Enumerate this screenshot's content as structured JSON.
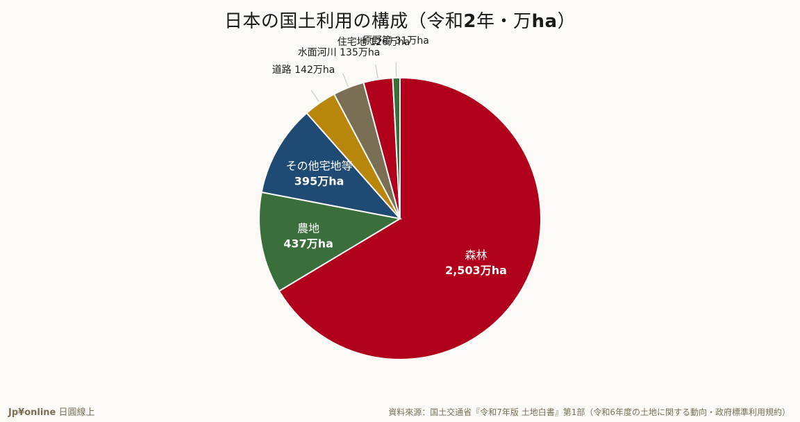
{
  "chart_data": {
    "type": "pie",
    "title": "日本の国土利用の構成（令和2年・万ha）",
    "title_parts": {
      "prefix": "日本の国土利用の構成（令和",
      "year": "2",
      "middle": "年・万",
      "unit": "ha",
      "suffix": "）"
    },
    "unit": "万ha",
    "slices": [
      {
        "name": "森林",
        "value": 2503,
        "display": "2,503万ha",
        "color": "#b1001c",
        "label_position": "inside"
      },
      {
        "name": "農地",
        "value": 437,
        "display": "437万ha",
        "color": "#3a6e3b",
        "label_position": "inside"
      },
      {
        "name": "その他宅地等",
        "value": 395,
        "display": "395万ha",
        "color": "#1e4a73",
        "label_position": "inside"
      },
      {
        "name": "道路",
        "value": 142,
        "display": "142万ha",
        "color": "#b8860b",
        "label_position": "outside"
      },
      {
        "name": "水面河川",
        "value": 135,
        "display": "135万ha",
        "color": "#7a6e55",
        "label_position": "outside"
      },
      {
        "name": "住宅地",
        "value": 126,
        "display": "126万ha",
        "color": "#b1001c",
        "label_position": "outside"
      },
      {
        "name": "原野等",
        "value": 31,
        "display": "31万ha",
        "color": "#3a6e3b",
        "label_position": "outside"
      }
    ],
    "outside_labels": [
      "道路 142万ha",
      "水面河川 135万ha",
      "住宅地 126万ha",
      "原野等 31万ha"
    ]
  },
  "footer": {
    "brand": "Jp¥online",
    "brand_suffix": "日圓線上",
    "source": "資料來源：国土交通省『令和7年版 土地白書』第1部（令和6年度の土地に関する動向・政府標準利用規約）"
  }
}
